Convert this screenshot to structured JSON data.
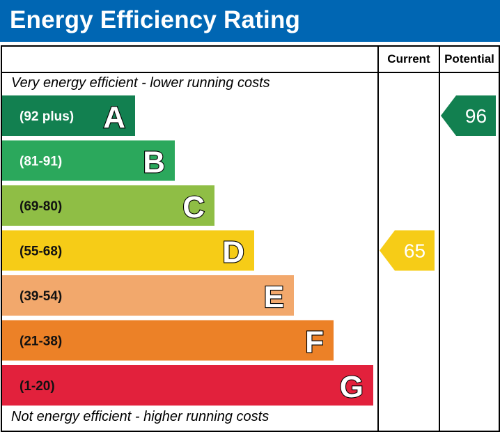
{
  "title": "Energy Efficiency Rating",
  "columns": {
    "current": "Current",
    "potential": "Potential"
  },
  "notes": {
    "top": "Very energy efficient - lower running costs",
    "bottom": "Not energy efficient - higher running costs"
  },
  "chart_data": {
    "type": "bar",
    "bands": [
      {
        "letter": "A",
        "range": "(92 plus)",
        "min": 92,
        "max": 100,
        "color": "#128050"
      },
      {
        "letter": "B",
        "range": "(81-91)",
        "min": 81,
        "max": 91,
        "color": "#2ba85c"
      },
      {
        "letter": "C",
        "range": "(69-80)",
        "min": 69,
        "max": 80,
        "color": "#8fbe45"
      },
      {
        "letter": "D",
        "range": "(55-68)",
        "min": 55,
        "max": 68,
        "color": "#f6cc17"
      },
      {
        "letter": "E",
        "range": "(39-54)",
        "min": 39,
        "max": 54,
        "color": "#f2a86c"
      },
      {
        "letter": "F",
        "range": "(21-38)",
        "min": 21,
        "max": 38,
        "color": "#ec8127"
      },
      {
        "letter": "G",
        "range": "(1-20)",
        "min": 1,
        "max": 20,
        "color": "#e2213c"
      }
    ],
    "current": {
      "value": 65,
      "band": "D"
    },
    "potential": {
      "value": 96,
      "band": "A"
    }
  }
}
